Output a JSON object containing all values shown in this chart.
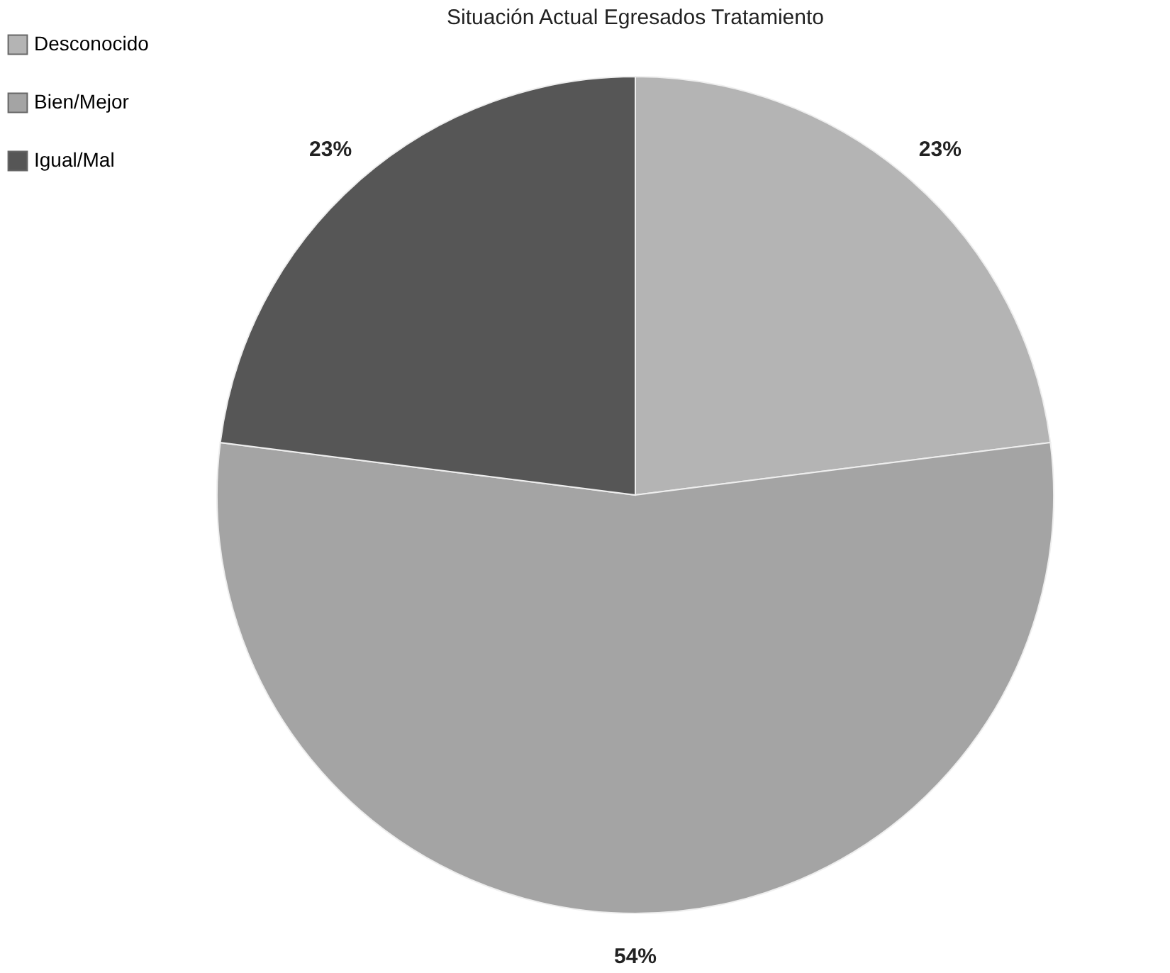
{
  "chart_data": {
    "type": "pie",
    "title": "Situación Actual Egresados Tratamiento",
    "categories": [
      "Desconocido",
      "Bien/Mejor",
      "Igual/Mal"
    ],
    "values": [
      23,
      54,
      23
    ],
    "value_labels": [
      "23%",
      "54%",
      "23%"
    ],
    "colors": [
      "#b4b4b4",
      "#a4a4a4",
      "#565656"
    ],
    "legend": "left"
  }
}
